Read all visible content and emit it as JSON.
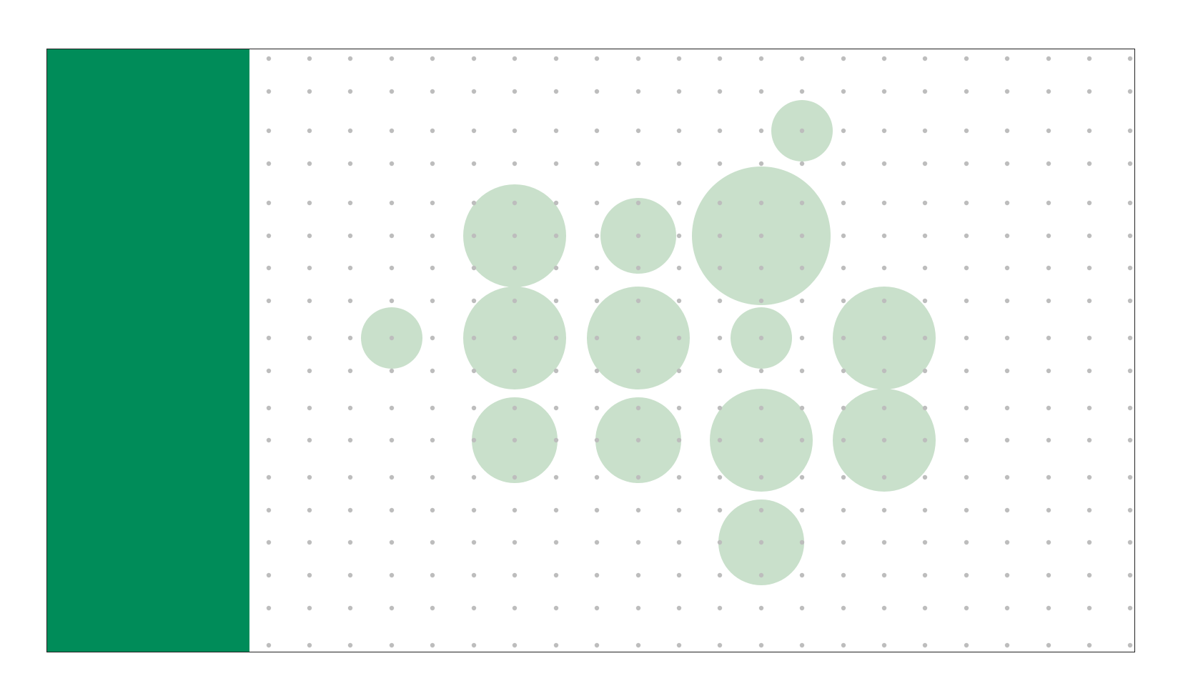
{
  "colors": {
    "panel": "#008C59",
    "bubble": "#C9E0CB",
    "dot": "#BDBDBD",
    "border": "#222222",
    "background": "#FFFFFF"
  },
  "dot_grid": {
    "columns": 22,
    "rows": 19
  },
  "bubbles": [
    {
      "col": 13,
      "row": 2,
      "size": "small"
    },
    {
      "col": 6,
      "row": 5,
      "size": "large"
    },
    {
      "col": 9,
      "row": 5,
      "size": "medium"
    },
    {
      "col": 12,
      "row": 5,
      "size": "xlarge"
    },
    {
      "col": 3,
      "row": 8,
      "size": "small"
    },
    {
      "col": 6,
      "row": 8,
      "size": "large"
    },
    {
      "col": 9,
      "row": 8,
      "size": "large"
    },
    {
      "col": 12,
      "row": 8,
      "size": "small"
    },
    {
      "col": 15,
      "row": 8,
      "size": "large"
    },
    {
      "col": 6,
      "row": 11,
      "size": "medium-large"
    },
    {
      "col": 9,
      "row": 11,
      "size": "medium-large"
    },
    {
      "col": 12,
      "row": 11,
      "size": "large"
    },
    {
      "col": 15,
      "row": 11,
      "size": "large"
    },
    {
      "col": 12,
      "row": 14,
      "size": "medium-large"
    }
  ]
}
